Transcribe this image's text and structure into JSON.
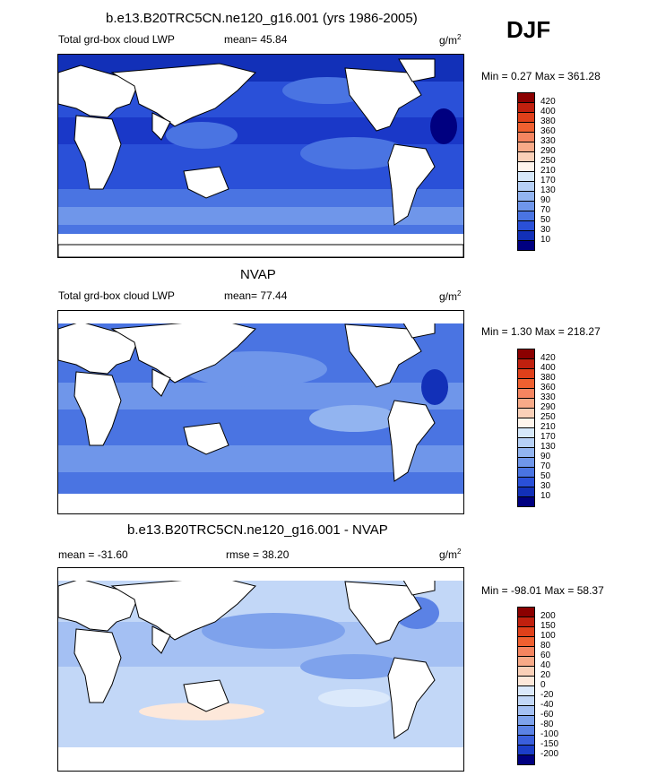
{
  "season": "DJF",
  "panels": [
    {
      "title": "b.e13.B20TRC5CN.ne120_g16.001 (yrs 1986-2005)",
      "left_label": "Total grd-box cloud LWP",
      "center_label": "mean=  45.84",
      "units": "g/m",
      "units_sup": "2",
      "minmax": "Min =   0.27 Max = 361.28",
      "type": "model"
    },
    {
      "title": "NVAP",
      "left_label": "Total grd-box cloud LWP",
      "center_label": "mean=  77.44",
      "units": "g/m",
      "units_sup": "2",
      "minmax": "Min =   1.30 Max = 218.27",
      "type": "obs"
    },
    {
      "title": "b.e13.B20TRC5CN.ne120_g16.001 - NVAP",
      "left_label": "mean = -31.60",
      "center_label": "rmse =  38.20",
      "units": "g/m",
      "units_sup": "2",
      "minmax": "Min = -98.01 Max =  58.37",
      "type": "diff"
    }
  ],
  "colorbars": {
    "abs": {
      "labels": [
        "420",
        "400",
        "380",
        "360",
        "330",
        "290",
        "250",
        "210",
        "170",
        "130",
        "90",
        "70",
        "50",
        "30",
        "10"
      ],
      "colors": [
        "#8b0000",
        "#c0200e",
        "#e0401a",
        "#f06030",
        "#f58560",
        "#f8aa88",
        "#fad0b8",
        "#fff5ec",
        "#d6e8fa",
        "#b6d0f6",
        "#92b4f0",
        "#6f96ea",
        "#4a74e2",
        "#2a50d8",
        "#1230b8",
        "#000080"
      ]
    },
    "diff": {
      "labels": [
        "200",
        "150",
        "100",
        "80",
        "60",
        "40",
        "20",
        "0",
        "-20",
        "-40",
        "-60",
        "-80",
        "-100",
        "-150",
        "-200"
      ],
      "colors": [
        "#8b0000",
        "#c0200e",
        "#e0401a",
        "#f06030",
        "#f58560",
        "#f8aa88",
        "#fad0b8",
        "#fde8da",
        "#dbe9fb",
        "#c2d7f7",
        "#a4c0f3",
        "#7ea2ec",
        "#5b82e5",
        "#3a5fdc",
        "#1c3ec8",
        "#000080"
      ]
    }
  }
}
